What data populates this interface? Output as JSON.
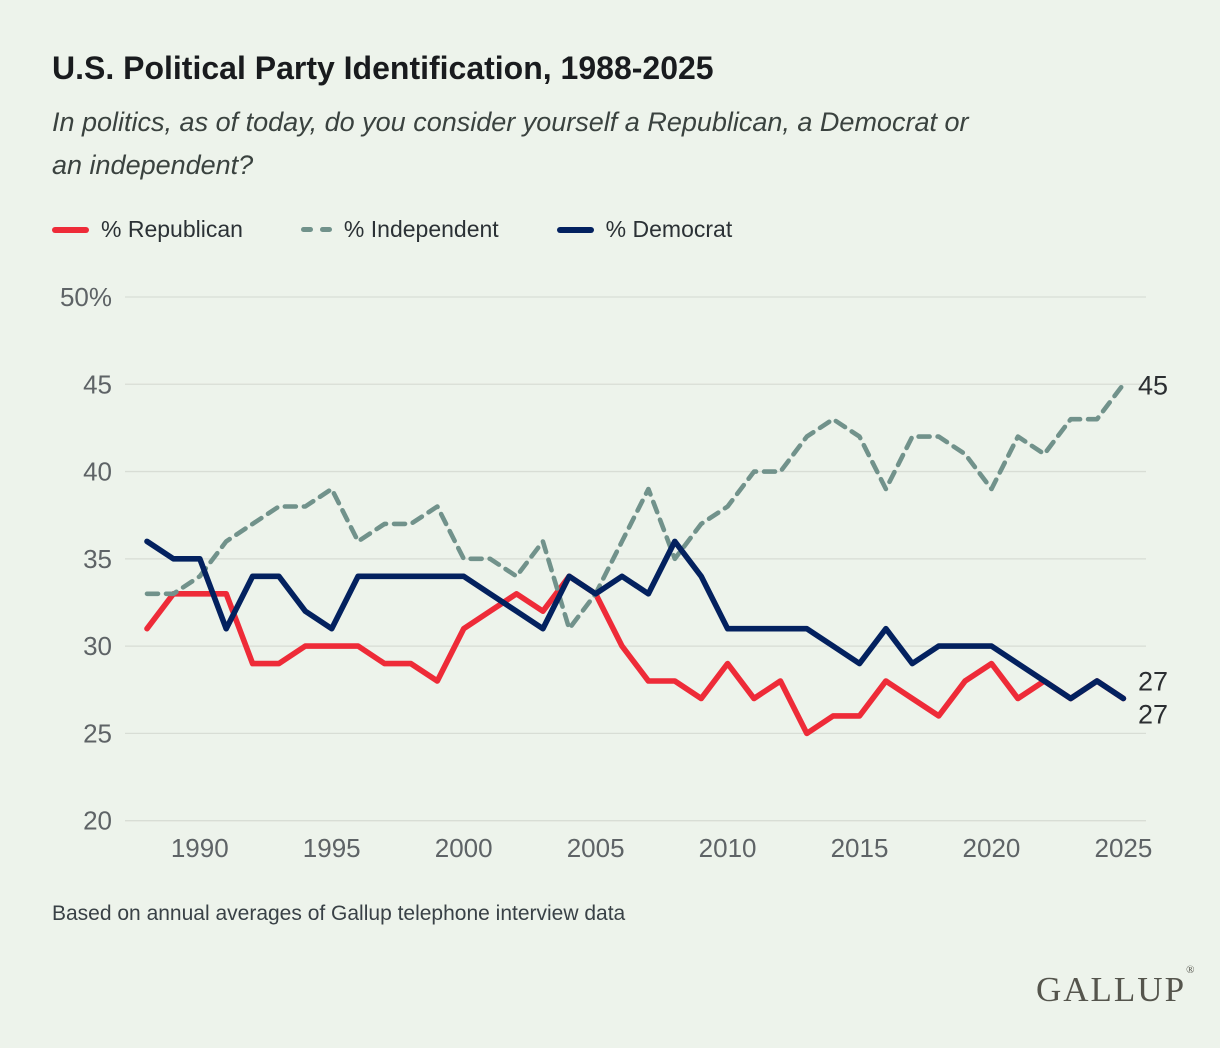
{
  "header": {
    "title": "U.S. Political Party Identification, 1988-2025",
    "subtitle_lines": [
      "In politics, as of today, do you consider yourself a Republican, a Democrat or",
      "an independent?"
    ]
  },
  "legend": [
    {
      "label": "% Republican",
      "color": "#ee2b38",
      "style": "solid"
    },
    {
      "label": "% Independent",
      "color": "#71928b",
      "style": "dashed"
    },
    {
      "label": "% Democrat",
      "color": "#03215f",
      "style": "solid"
    }
  ],
  "chart_data": {
    "type": "line",
    "title": "U.S. Political Party Identification, 1988-2025",
    "x": [
      1988,
      1989,
      1990,
      1991,
      1992,
      1993,
      1994,
      1995,
      1996,
      1997,
      1998,
      1999,
      2000,
      2001,
      2002,
      2003,
      2004,
      2005,
      2006,
      2007,
      2008,
      2009,
      2010,
      2011,
      2012,
      2013,
      2014,
      2015,
      2016,
      2017,
      2018,
      2019,
      2020,
      2021,
      2022,
      2023,
      2024,
      2025
    ],
    "series": [
      {
        "name": "republican",
        "label": "% Republican",
        "color": "#ee2b38",
        "dashed": false,
        "values": [
          31,
          33,
          33,
          33,
          29,
          29,
          30,
          30,
          30,
          29,
          29,
          28,
          31,
          32,
          33,
          32,
          34,
          33,
          30,
          28,
          28,
          27,
          29,
          27,
          28,
          25,
          26,
          26,
          28,
          27,
          26,
          28,
          29,
          27,
          28,
          27,
          28,
          27
        ]
      },
      {
        "name": "independent",
        "label": "% Independent",
        "color": "#71928b",
        "dashed": true,
        "values": [
          33,
          33,
          34,
          36,
          37,
          38,
          38,
          39,
          36,
          37,
          37,
          38,
          35,
          35,
          34,
          36,
          31,
          33,
          36,
          39,
          35,
          37,
          38,
          40,
          40,
          42,
          43,
          42,
          39,
          42,
          42,
          41,
          39,
          42,
          41,
          43,
          43,
          45
        ]
      },
      {
        "name": "democrat",
        "label": "% Democrat",
        "color": "#03215f",
        "dashed": false,
        "values": [
          36,
          35,
          35,
          31,
          34,
          34,
          32,
          31,
          34,
          34,
          34,
          34,
          34,
          33,
          32,
          31,
          34,
          33,
          34,
          33,
          36,
          34,
          31,
          31,
          31,
          31,
          30,
          29,
          31,
          29,
          30,
          30,
          30,
          29,
          28,
          27,
          28,
          27
        ]
      }
    ],
    "ylim": [
      20,
      50
    ],
    "yticks": [
      50,
      45,
      40,
      35,
      30,
      25,
      20
    ],
    "ytick_labels": [
      "50%",
      "45",
      "40",
      "35",
      "30",
      "25",
      "20"
    ],
    "xticks": [
      1990,
      1995,
      2000,
      2005,
      2010,
      2015,
      2020,
      2025
    ],
    "end_labels": [
      {
        "text": "45",
        "series": "independent",
        "value": 45
      },
      {
        "text": "27",
        "series": "republican",
        "value": 27
      },
      {
        "text": "27",
        "series": "democrat",
        "value": 27
      }
    ],
    "grid": true,
    "legend_position": "top",
    "colors": {
      "background": "#edf3eb",
      "gridline": "#d8ddd5",
      "tick_text": "#5e6366",
      "end_label_text": "#2b2e31"
    }
  },
  "footer": {
    "note": "Based on annual averages of Gallup telephone interview data",
    "logo": "GALLUP",
    "logo_mark": "®"
  }
}
